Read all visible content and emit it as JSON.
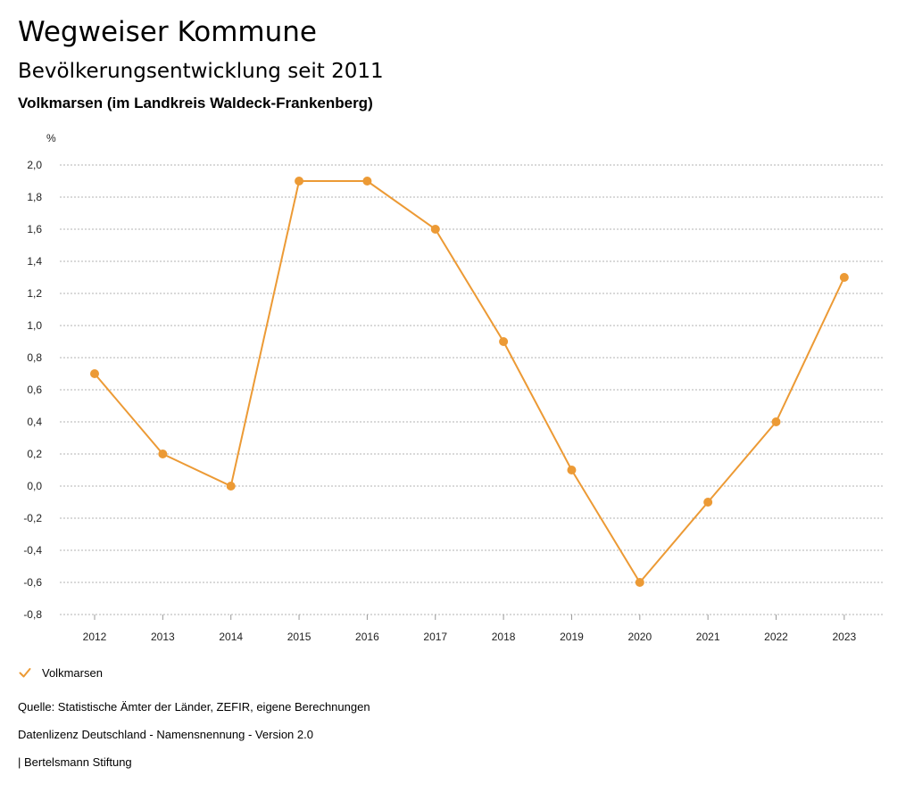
{
  "header": {
    "title": "Wegweiser Kommune",
    "subtitle": "Bevölkerungsentwicklung seit 2011",
    "region": "Volkmarsen (im Landkreis Waldeck-Frankenberg)"
  },
  "chart_data": {
    "type": "line",
    "ylabel": "%",
    "x": [
      "2012",
      "2013",
      "2014",
      "2015",
      "2016",
      "2017",
      "2018",
      "2019",
      "2020",
      "2021",
      "2022",
      "2023"
    ],
    "series": [
      {
        "name": "Volkmarsen",
        "values": [
          0.7,
          0.2,
          0.0,
          1.9,
          1.9,
          1.6,
          0.9,
          0.1,
          -0.6,
          -0.1,
          0.4,
          1.3
        ]
      }
    ],
    "ylim": [
      -0.8,
      2.0
    ],
    "yticks": [
      2.0,
      1.8,
      1.6,
      1.4,
      1.2,
      1.0,
      0.8,
      0.6,
      0.4,
      0.2,
      0.0,
      -0.2,
      -0.4,
      -0.6,
      -0.8
    ],
    "ytick_labels": [
      "2,0",
      "1,8",
      "1,6",
      "1,4",
      "1,2",
      "1,0",
      "0,8",
      "0,6",
      "0,4",
      "0,2",
      "0,0",
      "-0,2",
      "-0,4",
      "-0,6",
      "-0,8"
    ],
    "grid": true,
    "legend_position": "bottom-left",
    "line_color": "#ec9a35",
    "grid_color": "#b3b3b3"
  },
  "legend": {
    "label": "Volkmarsen",
    "icon": "check-icon"
  },
  "footer": {
    "source": "Quelle: Statistische Ämter der Länder, ZEFIR, eigene Berechnungen",
    "license": "Datenlizenz Deutschland - Namensnennung - Version 2.0",
    "publisher": "| Bertelsmann Stiftung"
  }
}
